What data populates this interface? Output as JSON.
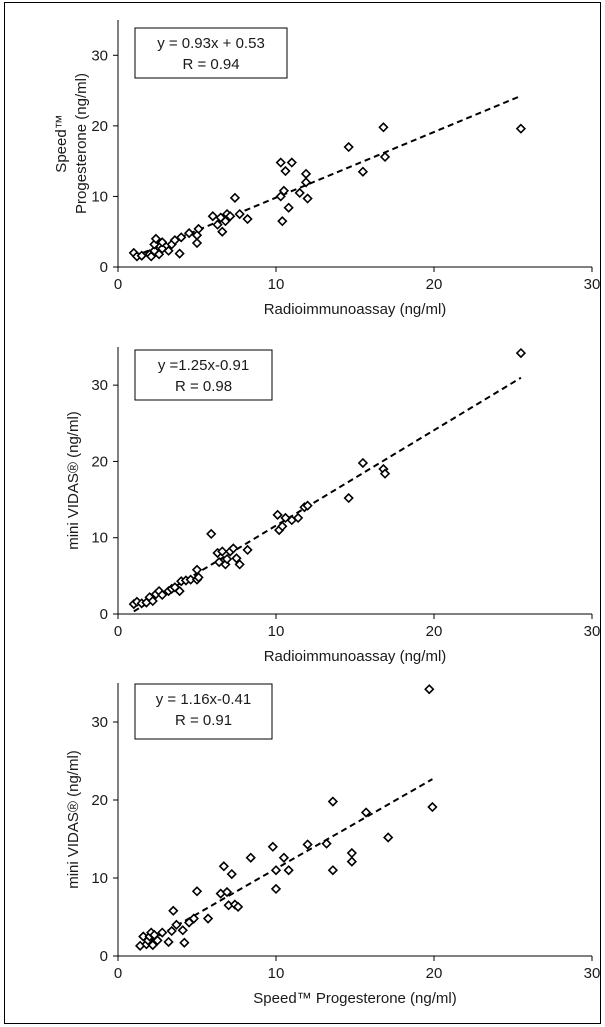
{
  "chart_data": [
    {
      "type": "scatter",
      "xlabel": "Radioimmunoassay (ng/ml)",
      "ylabel_line1": "Speed™",
      "ylabel_line2": "Progesterone (ng/ml)",
      "xlim": [
        0,
        30
      ],
      "ylim": [
        0,
        35
      ],
      "xticks": [
        0,
        10,
        20,
        30
      ],
      "yticks": [
        0,
        10,
        20,
        30
      ],
      "annotation": [
        "y = 0.93x + 0.53",
        "R = 0.94"
      ],
      "fit": {
        "slope": 0.93,
        "intercept": 0.53,
        "x": [
          1.0,
          25.5
        ]
      },
      "points": [
        [
          1.0,
          2.0
        ],
        [
          1.2,
          1.5
        ],
        [
          1.5,
          1.6
        ],
        [
          2.0,
          1.8
        ],
        [
          2.1,
          1.5
        ],
        [
          2.3,
          2.3
        ],
        [
          2.3,
          3.2
        ],
        [
          2.4,
          4.0
        ],
        [
          2.6,
          1.8
        ],
        [
          2.8,
          2.6
        ],
        [
          2.8,
          3.5
        ],
        [
          3.2,
          2.3
        ],
        [
          3.4,
          3.2
        ],
        [
          3.6,
          3.8
        ],
        [
          3.9,
          1.9
        ],
        [
          4.0,
          4.2
        ],
        [
          4.5,
          4.8
        ],
        [
          5.0,
          3.4
        ],
        [
          5.0,
          4.5
        ],
        [
          5.1,
          5.4
        ],
        [
          6.0,
          7.2
        ],
        [
          6.3,
          6.0
        ],
        [
          6.5,
          7.0
        ],
        [
          6.6,
          5.0
        ],
        [
          6.8,
          6.5
        ],
        [
          6.9,
          7.5
        ],
        [
          7.1,
          7.2
        ],
        [
          7.4,
          9.8
        ],
        [
          7.7,
          7.5
        ],
        [
          8.2,
          6.8
        ],
        [
          10.3,
          14.8
        ],
        [
          10.3,
          10.0
        ],
        [
          10.4,
          6.5
        ],
        [
          10.5,
          10.8
        ],
        [
          10.6,
          13.6
        ],
        [
          10.8,
          8.4
        ],
        [
          11.0,
          14.8
        ],
        [
          11.5,
          10.5
        ],
        [
          11.9,
          12.0
        ],
        [
          11.9,
          13.2
        ],
        [
          12.0,
          9.7
        ],
        [
          14.6,
          17.0
        ],
        [
          15.5,
          13.5
        ],
        [
          16.8,
          19.8
        ],
        [
          16.9,
          15.6
        ],
        [
          25.5,
          19.6
        ]
      ]
    },
    {
      "type": "scatter",
      "xlabel": "Radioimmunoassay (ng/ml)",
      "ylabel": "mini VIDAS® (ng/ml)",
      "xlim": [
        0,
        30
      ],
      "ylim": [
        0,
        35
      ],
      "xticks": [
        0,
        10,
        20,
        30
      ],
      "yticks": [
        0,
        10,
        20,
        30
      ],
      "annotation": [
        "y =1.25x-0.91",
        "R = 0.98"
      ],
      "fit": {
        "slope": 1.25,
        "intercept": -0.91,
        "x": [
          1.0,
          25.5
        ]
      },
      "points": [
        [
          1.0,
          1.3
        ],
        [
          1.2,
          1.6
        ],
        [
          1.5,
          1.4
        ],
        [
          1.8,
          1.5
        ],
        [
          2.0,
          2.2
        ],
        [
          2.2,
          1.7
        ],
        [
          2.4,
          2.6
        ],
        [
          2.6,
          3.0
        ],
        [
          2.8,
          2.5
        ],
        [
          3.2,
          3.0
        ],
        [
          3.4,
          3.3
        ],
        [
          3.6,
          3.5
        ],
        [
          3.9,
          3.0
        ],
        [
          4.0,
          4.3
        ],
        [
          4.3,
          4.4
        ],
        [
          4.6,
          4.5
        ],
        [
          5.0,
          4.5
        ],
        [
          5.0,
          5.8
        ],
        [
          5.1,
          4.8
        ],
        [
          5.9,
          10.5
        ],
        [
          6.3,
          8.0
        ],
        [
          6.4,
          6.8
        ],
        [
          6.6,
          8.2
        ],
        [
          6.8,
          6.5
        ],
        [
          6.9,
          7.2
        ],
        [
          7.1,
          8.2
        ],
        [
          7.3,
          8.6
        ],
        [
          7.5,
          7.3
        ],
        [
          7.7,
          6.5
        ],
        [
          8.2,
          8.4
        ],
        [
          10.1,
          13.0
        ],
        [
          10.2,
          11.0
        ],
        [
          10.4,
          11.5
        ],
        [
          10.6,
          12.6
        ],
        [
          11.0,
          12.3
        ],
        [
          11.4,
          12.6
        ],
        [
          11.8,
          14.0
        ],
        [
          12.0,
          14.2
        ],
        [
          14.6,
          15.2
        ],
        [
          15.5,
          19.8
        ],
        [
          16.8,
          19.0
        ],
        [
          16.9,
          18.4
        ],
        [
          25.5,
          34.2
        ]
      ]
    },
    {
      "type": "scatter",
      "xlabel": "Speed™ Progesterone (ng/ml)",
      "ylabel": "mini VIDAS® (ng/ml)",
      "xlim": [
        0,
        30
      ],
      "ylim": [
        0,
        35
      ],
      "xticks": [
        0,
        10,
        20,
        30
      ],
      "yticks": [
        0,
        10,
        20,
        30
      ],
      "annotation": [
        "y = 1.16x-0.41",
        "R = 0.91"
      ],
      "fit": {
        "slope": 1.16,
        "intercept": -0.41,
        "x": [
          1.5,
          19.9
        ]
      },
      "points": [
        [
          1.4,
          1.3
        ],
        [
          1.6,
          2.5
        ],
        [
          1.8,
          1.5
        ],
        [
          1.9,
          2.0
        ],
        [
          2.0,
          2.5
        ],
        [
          2.1,
          3.0
        ],
        [
          2.2,
          1.4
        ],
        [
          2.3,
          2.7
        ],
        [
          2.5,
          2.0
        ],
        [
          2.8,
          3.0
        ],
        [
          3.2,
          1.8
        ],
        [
          3.4,
          3.2
        ],
        [
          3.5,
          5.8
        ],
        [
          3.7,
          4.0
        ],
        [
          4.1,
          3.3
        ],
        [
          4.2,
          1.7
        ],
        [
          4.5,
          4.3
        ],
        [
          4.8,
          4.8
        ],
        [
          5.0,
          8.3
        ],
        [
          5.7,
          4.8
        ],
        [
          6.5,
          8.0
        ],
        [
          6.7,
          11.5
        ],
        [
          6.9,
          8.2
        ],
        [
          7.0,
          6.5
        ],
        [
          7.2,
          10.5
        ],
        [
          7.4,
          6.6
        ],
        [
          7.6,
          6.3
        ],
        [
          8.4,
          12.6
        ],
        [
          9.8,
          14.0
        ],
        [
          10.0,
          8.6
        ],
        [
          10.0,
          11.0
        ],
        [
          10.5,
          12.6
        ],
        [
          10.8,
          11.0
        ],
        [
          12.0,
          14.3
        ],
        [
          13.2,
          14.4
        ],
        [
          13.6,
          19.8
        ],
        [
          13.6,
          11.0
        ],
        [
          14.8,
          13.2
        ],
        [
          14.8,
          12.1
        ],
        [
          15.7,
          18.4
        ],
        [
          17.1,
          15.2
        ],
        [
          19.7,
          34.2
        ],
        [
          19.9,
          19.1
        ]
      ]
    }
  ]
}
